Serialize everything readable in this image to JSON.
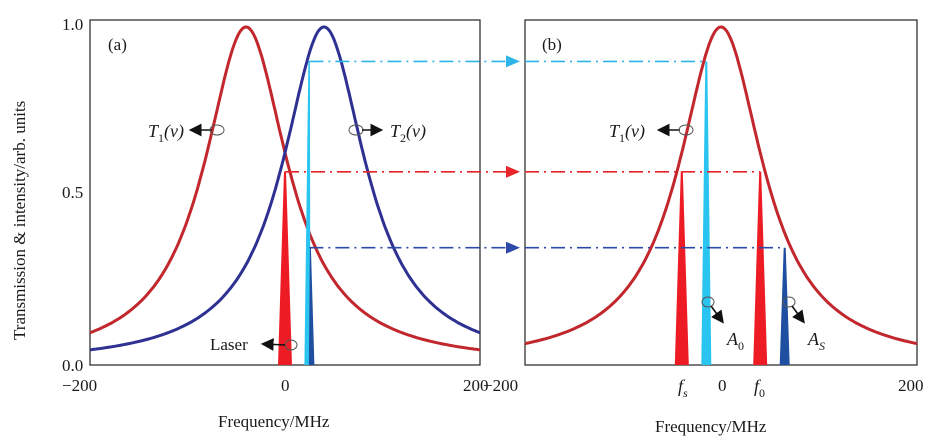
{
  "colors": {
    "t1_curve": "#c1272d",
    "t2_curve": "#2e3192",
    "laser_red": "#ed1c24",
    "cyan": "#29c4ef",
    "blue": "#1f4fa0",
    "arrow_cyan": "#2fb6e8",
    "arrow_red": "#e8232a",
    "arrow_blue": "#2e4aa8"
  },
  "chart_data": [
    {
      "type": "line",
      "panel_label": "(a)",
      "xlabel": "Frequency/MHz",
      "ylabel": "Transmission & intensity/arb. units",
      "xlim": [
        -200,
        200
      ],
      "ylim": [
        0,
        1
      ],
      "x_ticks": [
        "−200",
        "0",
        "200"
      ],
      "y_ticks": [
        "0.0",
        "0.5",
        "1.0"
      ],
      "series": [
        {
          "name": "T1(v)",
          "peak_x": -40,
          "peak_y": 0.98,
          "hwhm": 52,
          "color": "t1_curve"
        },
        {
          "name": "T2(v)",
          "peak_x": 40,
          "peak_y": 0.98,
          "hwhm": 52,
          "color": "t2_curve"
        }
      ],
      "spikes": [
        {
          "x": 0,
          "height": 0.56,
          "width": 14,
          "color": "laser_red"
        },
        {
          "x": 25,
          "height": 0.88,
          "width": 10,
          "color": "cyan",
          "part": "left"
        },
        {
          "x": 25,
          "height": 0.34,
          "width": 10,
          "color": "blue",
          "part": "right"
        }
      ],
      "annotations": {
        "t1": {
          "italic": "T",
          "sub": "1",
          "rest": "(v)"
        },
        "t2": {
          "italic": "T",
          "sub": "2",
          "rest": "(v)"
        },
        "laser": "Laser"
      }
    },
    {
      "type": "line",
      "panel_label": "(b)",
      "xlabel": "Frequency/MHz",
      "xlim": [
        -200,
        200
      ],
      "ylim": [
        0,
        1
      ],
      "x_ticks": [
        "−200",
        "0",
        "200"
      ],
      "x_markers": {
        "fs": {
          "italic": "f",
          "sub": "s",
          "x": -40
        },
        "f0": {
          "italic": "f",
          "sub": "0",
          "x": 40
        }
      },
      "series": [
        {
          "name": "T1(v)",
          "peak_x": 0,
          "peak_y": 0.98,
          "hwhm": 52,
          "color": "t1_curve"
        }
      ],
      "spikes": [
        {
          "x": -40,
          "height": 0.56,
          "width": 14,
          "color": "laser_red"
        },
        {
          "x": -15,
          "height": 0.88,
          "width": 10,
          "color": "cyan"
        },
        {
          "x": 40,
          "height": 0.56,
          "width": 14,
          "color": "laser_red"
        },
        {
          "x": 65,
          "height": 0.34,
          "width": 10,
          "color": "blue"
        }
      ],
      "annotations": {
        "t1": {
          "italic": "T",
          "sub": "1",
          "rest": "(v)"
        },
        "a0": {
          "italic": "A",
          "sub": "0"
        },
        "as": {
          "italic": "A",
          "sub": "S"
        }
      }
    }
  ],
  "link_lines": [
    {
      "y": 0.88,
      "color": "arrow_cyan"
    },
    {
      "y": 0.56,
      "color": "arrow_red"
    },
    {
      "y": 0.34,
      "color": "arrow_blue"
    }
  ]
}
